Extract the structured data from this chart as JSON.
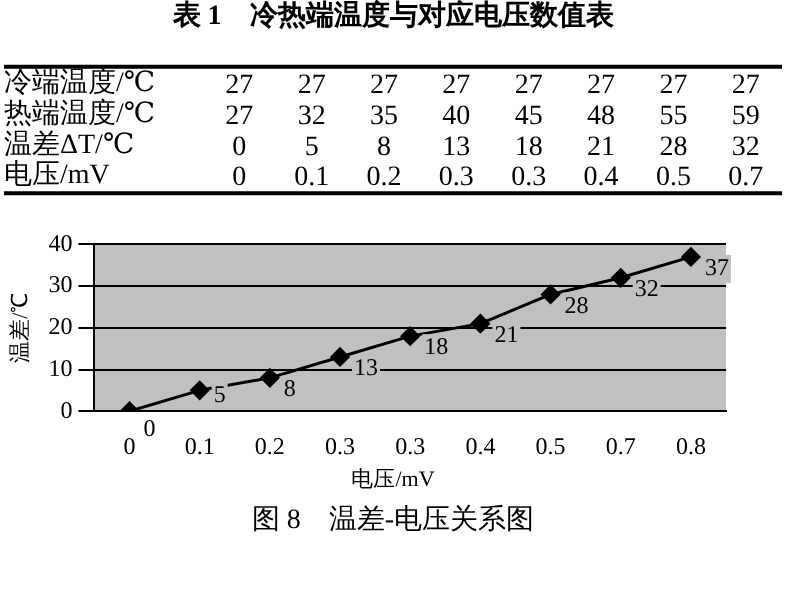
{
  "chart_data": [
    {
      "type": "heatmap",
      "title": "表 1　冷热端温度与对应电压数值表",
      "categories": [
        null,
        null,
        null,
        null,
        null,
        null,
        null,
        null
      ],
      "y_categories": [
        "冷端温度/℃",
        "热端温度/℃",
        "温差ΔT/℃",
        "电压/mV"
      ],
      "cells": [
        [
          27,
          27,
          27,
          27,
          27,
          27,
          27,
          27
        ],
        [
          27,
          32,
          35,
          40,
          45,
          48,
          55,
          59
        ],
        [
          0,
          5,
          8,
          13,
          18,
          21,
          28,
          32
        ],
        [
          0,
          0.1,
          0.2,
          0.3,
          0.3,
          0.4,
          0.5,
          0.7
        ]
      ],
      "data_labels": true
    },
    {
      "type": "line",
      "title": "图 8　温差-电压关系图",
      "xlabel": "电压/mV",
      "ylabel": "温差/℃",
      "categories": [
        "0",
        "0.1",
        "0.2",
        "0.3",
        "0.3",
        "0.4",
        "0.5",
        "0.7",
        "0.8"
      ],
      "series": [
        {
          "color": "#000000",
          "values": [
            0,
            5,
            8,
            13,
            18,
            21,
            28,
            32,
            37
          ]
        }
      ],
      "ylim": [
        0,
        40
      ],
      "yticks": [
        0,
        10,
        20,
        30,
        40
      ],
      "grid": "y",
      "marker": "diamond",
      "line_style": "solid",
      "data_labels": true,
      "legend": false
    }
  ]
}
